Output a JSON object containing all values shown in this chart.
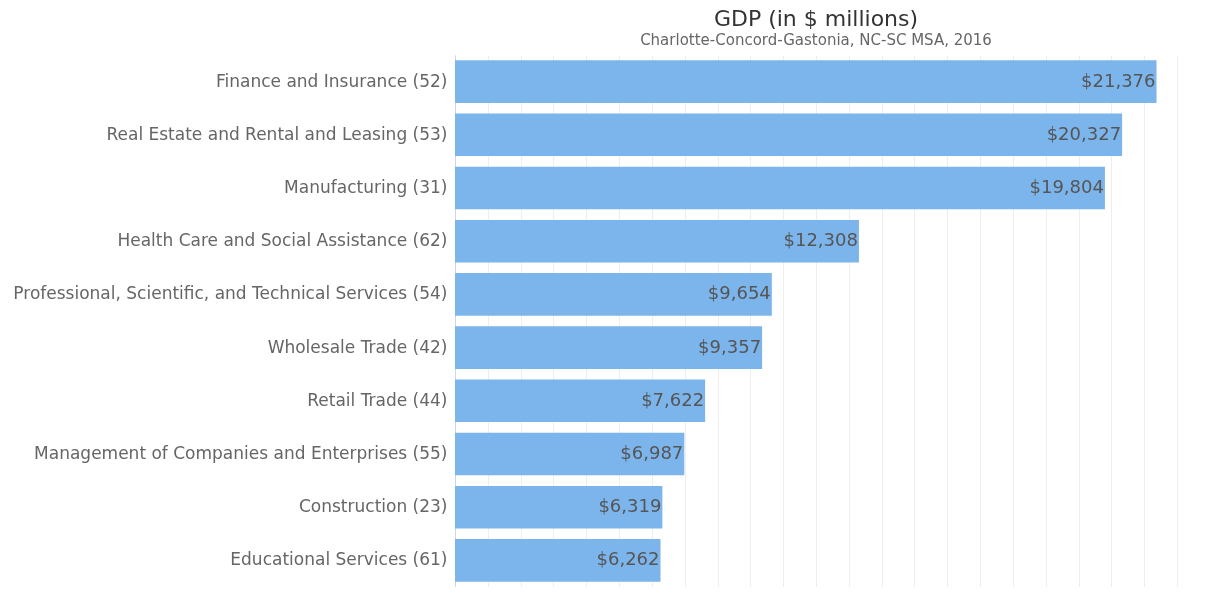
{
  "chart_data": {
    "type": "bar",
    "orientation": "horizontal",
    "title": "GDP (in $ millions)",
    "subtitle": "Charlotte-Concord-Gastonia, NC-SC MSA, 2016",
    "categories": [
      "Finance and Insurance (52)",
      "Real Estate and Rental and Leasing (53)",
      "Manufacturing (31)",
      "Health Care and Social Assistance (62)",
      "Professional, Scientific, and Technical Services (54)",
      "Wholesale Trade (42)",
      "Retail Trade (44)",
      "Management of Companies and Enterprises (55)",
      "Construction (23)",
      "Educational Services (61)"
    ],
    "values": [
      21376,
      20327,
      19804,
      12308,
      9654,
      9357,
      7622,
      6987,
      6319,
      6262
    ],
    "value_labels": [
      "$21,376",
      "$20,327",
      "$19,804",
      "$12,308",
      "$9,654",
      "$9,357",
      "$7,622",
      "$6,987",
      "$6,319",
      "$6,262"
    ],
    "color": "#7cb5ec",
    "grid": "x",
    "tick_labels": "y"
  }
}
